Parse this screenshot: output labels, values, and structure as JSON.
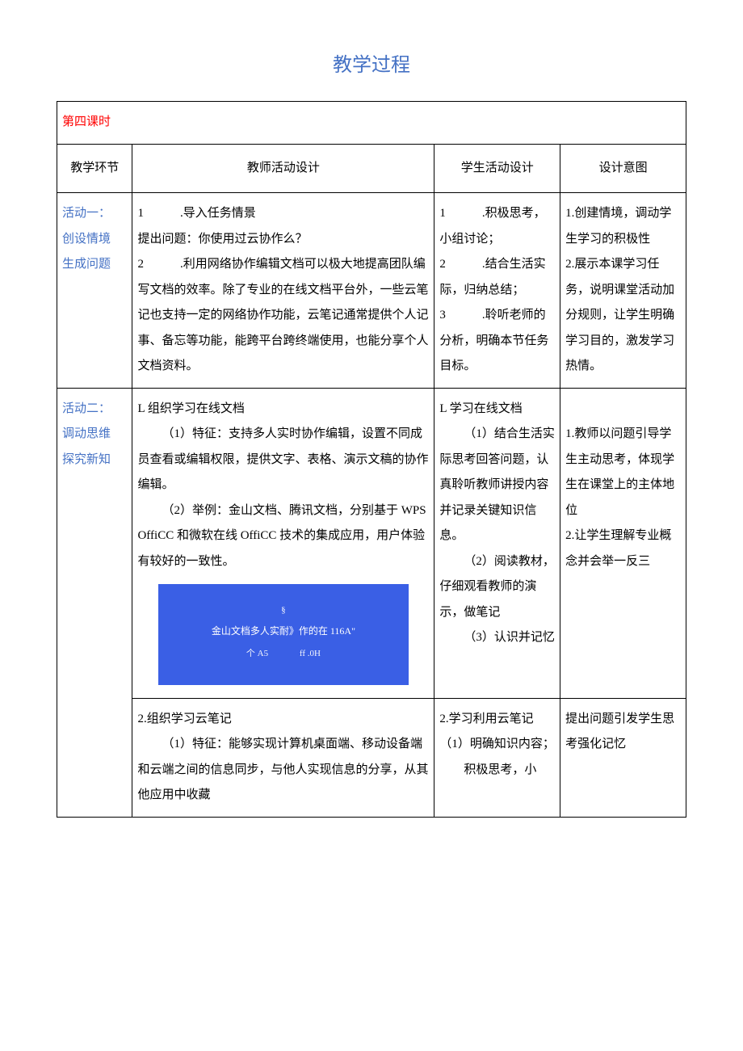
{
  "title": "教学过程",
  "lesson_header": "第四课时",
  "col_headers": {
    "c1": "教学环节",
    "c2": "教师活动设计",
    "c3": "学生活动设计",
    "c4": "设计意图"
  },
  "row1": {
    "stage": {
      "l1": "活动一：",
      "l2": "创设情境",
      "l3": "生成问题"
    },
    "teacher": {
      "p1": "1　　　.导入任务情景",
      "p2": "提出问题：你使用过云协作么？",
      "p3": "2　　　.利用网络协作编辑文档可以极大地提高团队编写文档的效率。除了专业的在线文档平台外，一些云笔记也支持一定的网络协作功能，云笔记通常提供个人记事、备忘等功能，能跨平台跨终端使用，也能分享个人文档资料。"
    },
    "student": {
      "p1": "1　　　.积极思考，小组讨论；",
      "p2": "2　　　.结合生活实际，归纳总结；",
      "p3": "3　　　.聆听老师的分析，明确本节任务目标。"
    },
    "intent": {
      "p1": "1.创建情境，调动学生学习的积极性",
      "p2": "2.展示本课学习任务，说明课堂活动加分规则，让学生明确学习目的，激发学习热情。"
    }
  },
  "row2a": {
    "stage": {
      "l1": "活动二：",
      "l2": "调动思维",
      "l3": "探究新知"
    },
    "teacher": {
      "p1": "L 组织学习在线文档",
      "p2": "（1）特征：支持多人实时协作编辑，设置不同成员查看或编辑权限，提供文字、表格、演示文稿的协作编辑。",
      "p3": "（2）举例：金山文档、腾讯文档，分别基于 WPSOffiCC 和微软在线 OffiCC 技术的集成应用，用户体验有较好的一致性。"
    },
    "image": {
      "bg": "#3a5fe5",
      "fg": "#ffffff",
      "l1": "§",
      "l2": "金山文档多人实耐》作的在 116A\"",
      "l3a": "个 A5",
      "l3b": "ff .0H"
    },
    "student": {
      "p1": "L 学习在线文档",
      "p2": "（1）结合生活实际思考回答问题，认真聆听教师讲授内容并记录关键知识信息。",
      "p3": "（2）阅读教材，仔细观看教师的演示，做笔记",
      "p4": "（3）认识并记忆"
    },
    "intent": {
      "p1": "1.教师以问题引导学生主动思考，体现学生在课堂上的主体地位",
      "p2": "2.让学生理解专业概念并会举一反三"
    }
  },
  "row2b": {
    "teacher": {
      "p1": "2.组织学习云笔记",
      "p2": "（1）特征：能够实现计算机桌面端、移动设备端和云端之间的信息同步，与他人实现信息的分享，从其他应用中收藏"
    },
    "student": {
      "p1": "2.学习利用云笔记",
      "p2": "（1）明确知识内容；",
      "p3": "积极思考，小"
    },
    "intent": {
      "p1": "提出问题引发学生思考强化记忆"
    }
  },
  "colors": {
    "title": "#4471c4",
    "stage_label": "#4471c4",
    "lesson_header": "#ff0000",
    "border": "#000000",
    "text": "#000000",
    "bg": "#ffffff"
  }
}
